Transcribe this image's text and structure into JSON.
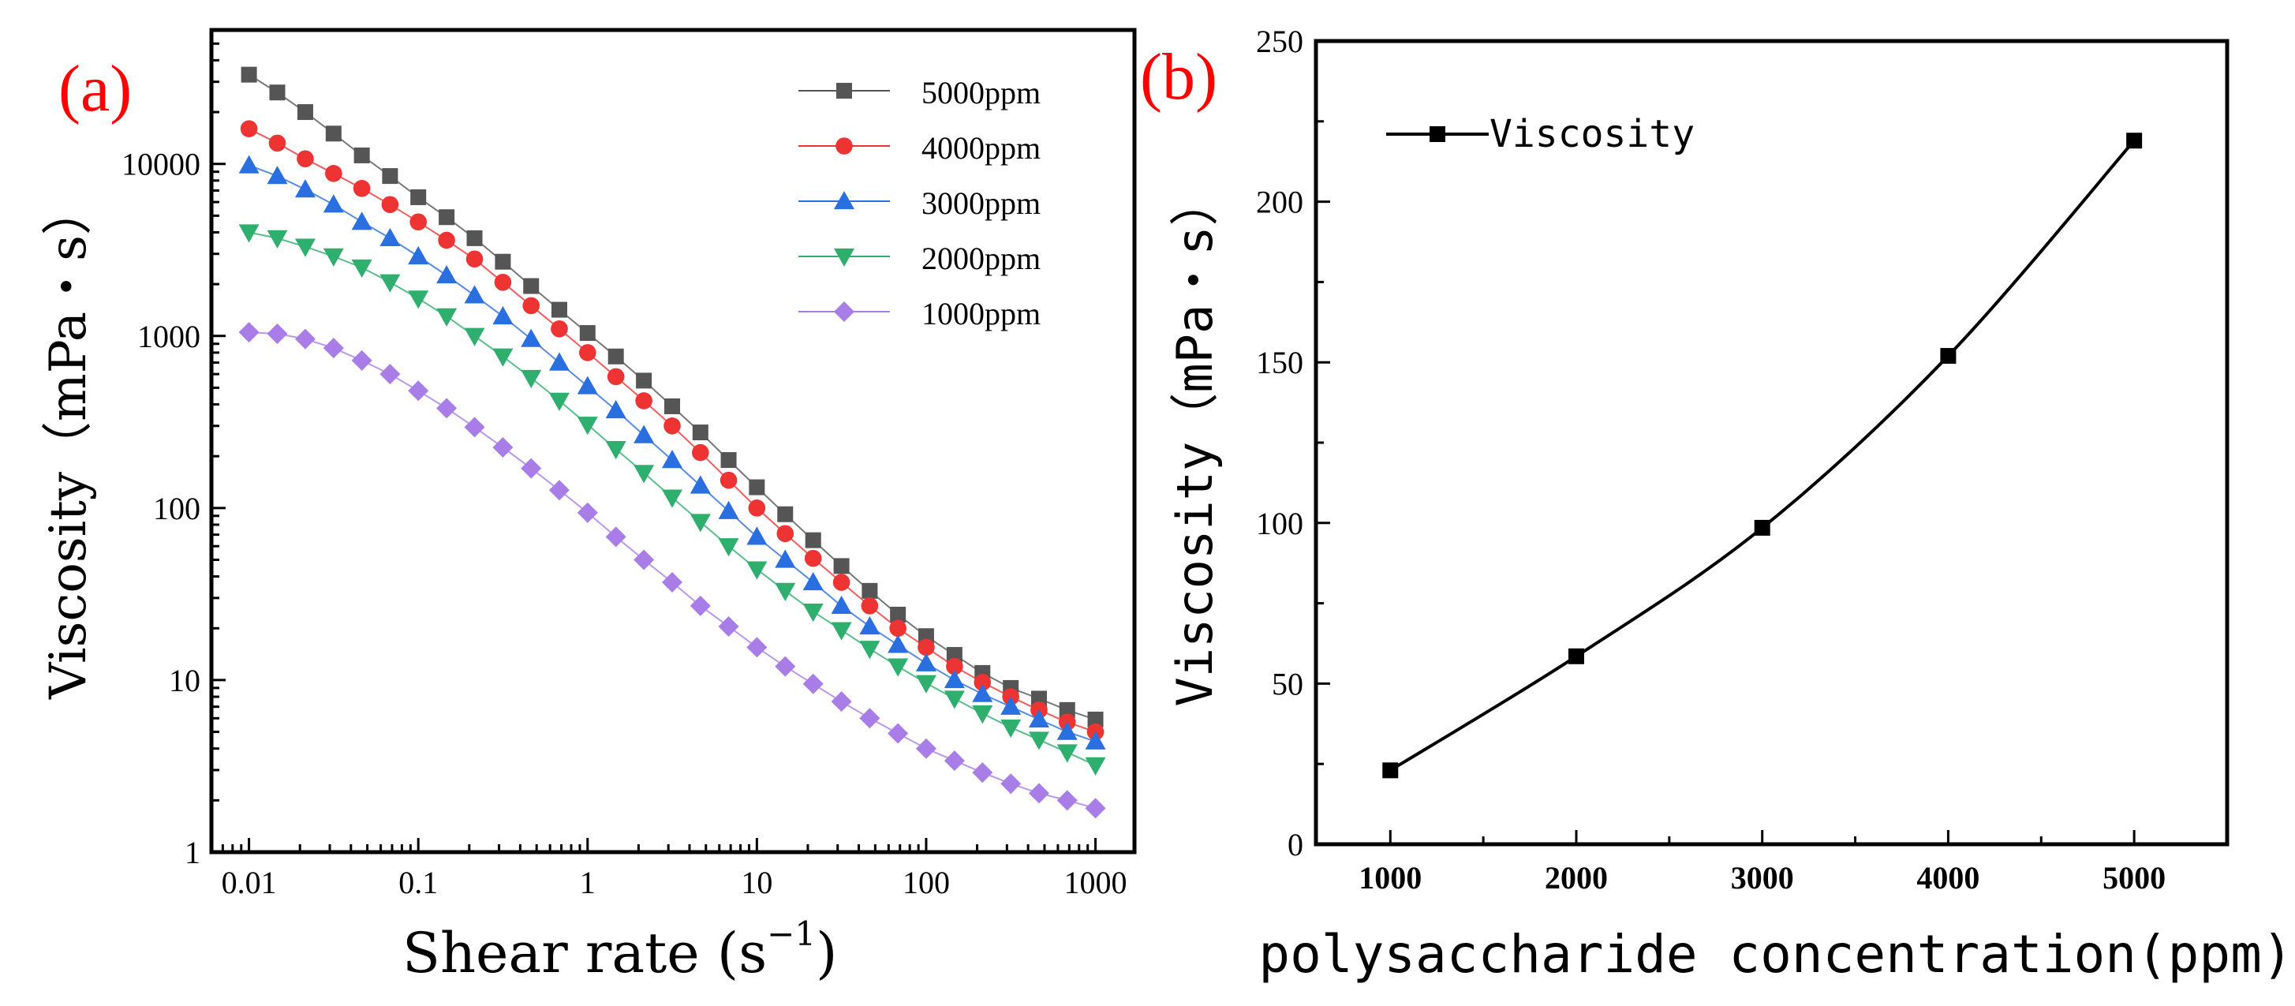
{
  "chart_data": [
    {
      "type": "line",
      "panel_label": "(a)",
      "xscale": "log",
      "yscale": "log",
      "xlim": [
        0.006,
        1700
      ],
      "ylim": [
        1,
        60000
      ],
      "xlabel": "Shear rate (s",
      "xlabel_sup": "−1",
      "xlabel_close": ")",
      "ylabel": "Viscosity（mPa・s）",
      "x_ticks": [
        "0.01",
        "0.1",
        "1",
        "10",
        "100",
        "1000"
      ],
      "y_ticks": [
        "1",
        "10",
        "100",
        "1000",
        "10000"
      ],
      "legend_position": "top-right",
      "x": [
        0.01,
        0.0147,
        0.0215,
        0.0316,
        0.0464,
        0.0681,
        0.1,
        0.147,
        0.215,
        0.316,
        0.464,
        0.681,
        1,
        1.47,
        2.15,
        3.16,
        4.64,
        6.81,
        10,
        14.7,
        21.5,
        31.6,
        46.4,
        68.1,
        100,
        147,
        215,
        316,
        464,
        681,
        1000
      ],
      "series": [
        {
          "name": "5000ppm",
          "marker": "square",
          "color": "#555555",
          "values": [
            33000,
            26000,
            20000,
            15000,
            11200,
            8500,
            6400,
            4900,
            3700,
            2700,
            1950,
            1420,
            1040,
            760,
            550,
            390,
            275,
            190,
            132,
            92,
            65,
            46,
            33,
            24,
            18,
            14,
            11,
            9,
            7.8,
            6.7,
            5.9
          ]
        },
        {
          "name": "4000ppm",
          "marker": "circle",
          "color": "#ee3333",
          "values": [
            16000,
            13200,
            10700,
            8800,
            7200,
            5800,
            4600,
            3600,
            2800,
            2050,
            1500,
            1100,
            800,
            580,
            420,
            300,
            210,
            145,
            100,
            71,
            51,
            37,
            27,
            20,
            15.5,
            12,
            9.7,
            8,
            6.7,
            5.7,
            5
          ]
        },
        {
          "name": "3000ppm",
          "marker": "triangle-up",
          "color": "#2a6fe0",
          "values": [
            9800,
            8500,
            7100,
            5800,
            4600,
            3700,
            2900,
            2250,
            1720,
            1300,
            960,
            700,
            510,
            370,
            265,
            190,
            135,
            96,
            68,
            50,
            37,
            27,
            20.5,
            16,
            12.5,
            10,
            8.3,
            7,
            5.9,
            5,
            4.4
          ]
        },
        {
          "name": "2000ppm",
          "marker": "triangle-down",
          "color": "#2eaf6e",
          "values": [
            4000,
            3700,
            3300,
            2900,
            2500,
            2050,
            1650,
            1300,
            1000,
            760,
            570,
            420,
            305,
            220,
            160,
            115,
            83,
            60,
            44,
            33,
            25,
            19.5,
            15.2,
            12,
            9.6,
            7.8,
            6.4,
            5.3,
            4.5,
            3.8,
            3.2
          ]
        },
        {
          "name": "1000ppm",
          "marker": "diamond",
          "color": "#a97de8",
          "values": [
            1050,
            1030,
            960,
            850,
            720,
            600,
            480,
            380,
            295,
            225,
            170,
            127,
            94,
            68,
            50,
            37,
            27,
            20.5,
            15.5,
            12,
            9.5,
            7.5,
            6,
            4.9,
            4,
            3.4,
            2.9,
            2.5,
            2.2,
            2,
            1.8
          ]
        }
      ]
    },
    {
      "type": "line",
      "panel_label": "(b)",
      "xlim": [
        600,
        5500
      ],
      "ylim": [
        0,
        250
      ],
      "xlabel": "polysaccharide concentration(ppm)",
      "ylabel": "Viscosity（mPa・s）",
      "x_ticks": [
        "1000",
        "2000",
        "3000",
        "4000",
        "5000"
      ],
      "y_ticks": [
        "0",
        "50",
        "100",
        "150",
        "200",
        "250"
      ],
      "legend_position": "top-left",
      "series": [
        {
          "name": "Viscosity",
          "marker": "square",
          "color": "#000000",
          "x": [
            1000,
            2000,
            3000,
            4000,
            5000
          ],
          "values": [
            23,
            58.5,
            98.5,
            152,
            219
          ]
        }
      ]
    }
  ]
}
